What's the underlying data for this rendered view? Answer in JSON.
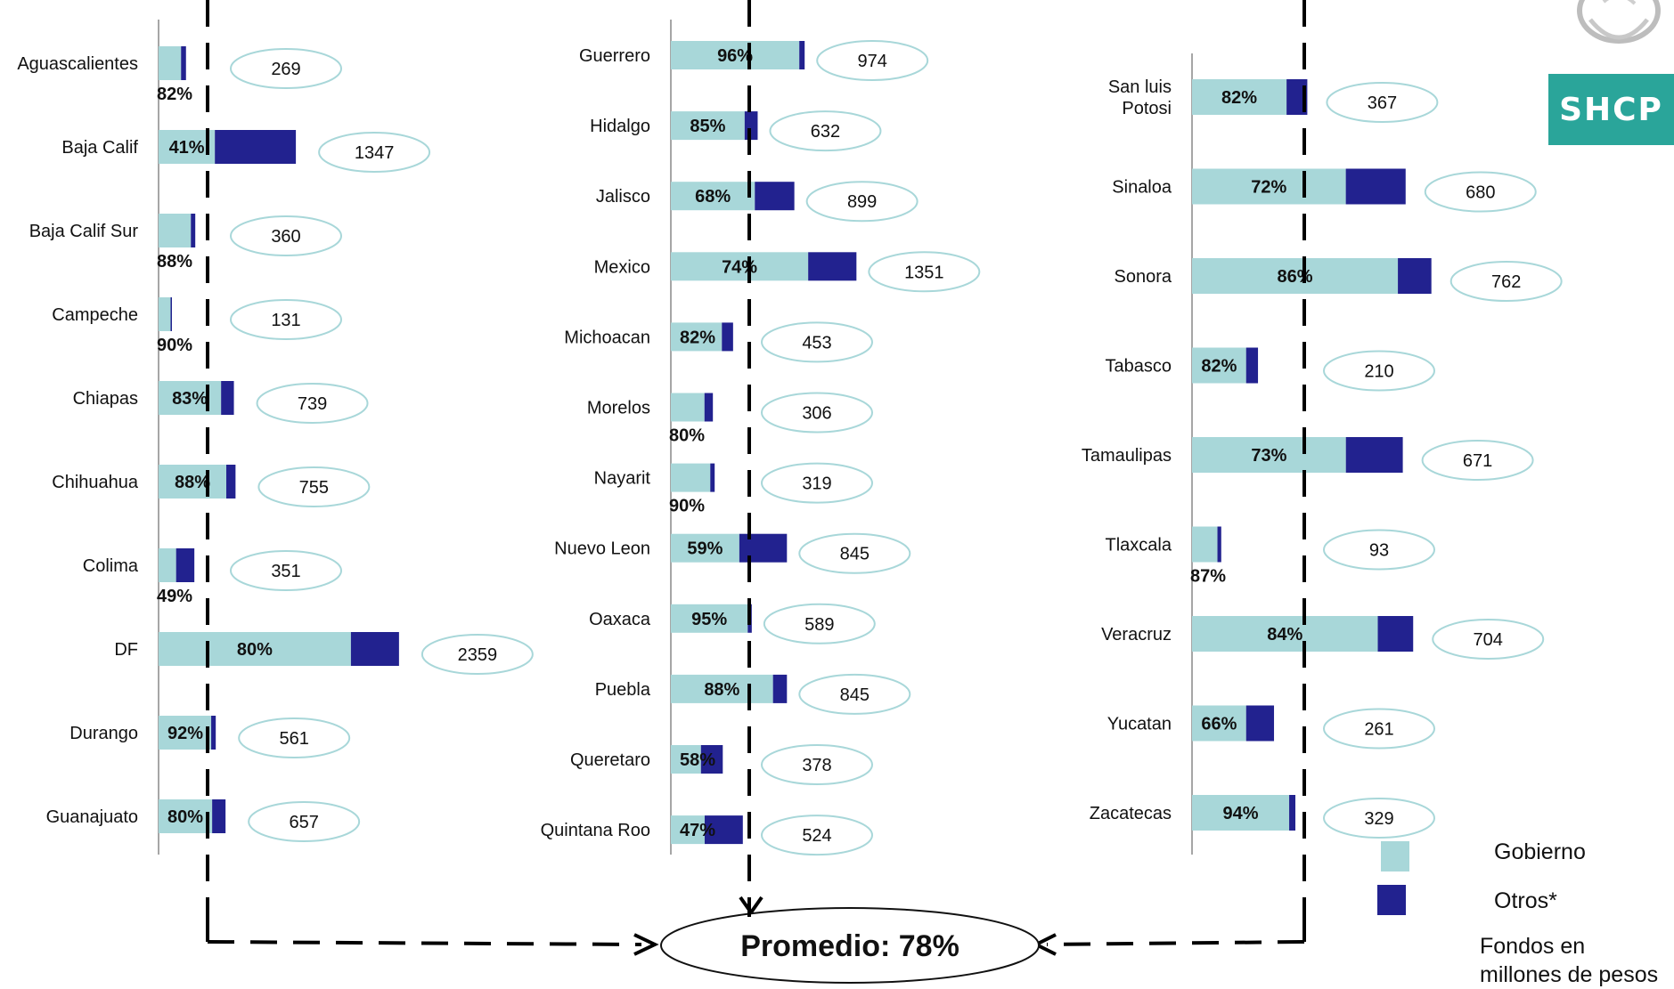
{
  "chart_data": {
    "type": "bar",
    "stacked": true,
    "orientation": "horizontal",
    "series": [
      {
        "name": "Gobierno",
        "color": "#a8d7d9"
      },
      {
        "name": "Otros*",
        "color": "#22228f"
      }
    ],
    "columns": [
      {
        "states": [
          {
            "name": "Aguascalientes",
            "total": 269,
            "pct": "82%"
          },
          {
            "name": "Baja Calif",
            "total": 1347,
            "pct": "41%"
          },
          {
            "name": "Baja Calif Sur",
            "total": 360,
            "pct": "88%"
          },
          {
            "name": "Campeche",
            "total": 131,
            "pct": "90%"
          },
          {
            "name": "Chiapas",
            "total": 739,
            "pct": "83%"
          },
          {
            "name": "Chihuahua",
            "total": 755,
            "pct": "88%"
          },
          {
            "name": "Colima",
            "total": 351,
            "pct": "49%"
          },
          {
            "name": "DF",
            "total": 2359,
            "pct": "80%"
          },
          {
            "name": "Durango",
            "total": 561,
            "pct": "92%"
          },
          {
            "name": "Guanajuato",
            "total": 657,
            "pct": "80%"
          }
        ]
      },
      {
        "states": [
          {
            "name": "Guerrero",
            "total": 974,
            "pct": "96%"
          },
          {
            "name": "Hidalgo",
            "total": 632,
            "pct": "85%"
          },
          {
            "name": "Jalisco",
            "total": 899,
            "pct": "68%"
          },
          {
            "name": "Mexico",
            "total": 1351,
            "pct": "74%"
          },
          {
            "name": "Michoacan",
            "total": 453,
            "pct": "82%"
          },
          {
            "name": "Morelos",
            "total": 306,
            "pct": "80%"
          },
          {
            "name": "Nayarit",
            "total": 319,
            "pct": "90%"
          },
          {
            "name": "Nuevo Leon",
            "total": 845,
            "pct": "59%"
          },
          {
            "name": "Oaxaca",
            "total": 589,
            "pct": "95%"
          },
          {
            "name": "Puebla",
            "total": 845,
            "pct": "88%"
          },
          {
            "name": "Queretaro",
            "total": 378,
            "pct": "58%"
          },
          {
            "name": "Quintana Roo",
            "total": 524,
            "pct": "47%"
          }
        ]
      },
      {
        "states": [
          {
            "name": "San luis\nPotosi",
            "total": 367,
            "pct": "82%"
          },
          {
            "name": "Sinaloa",
            "total": 680,
            "pct": "72%"
          },
          {
            "name": "Sonora",
            "total": 762,
            "pct": "86%"
          },
          {
            "name": "Tabasco",
            "total": 210,
            "pct": "82%"
          },
          {
            "name": "Tamaulipas",
            "total": 671,
            "pct": "73%"
          },
          {
            "name": "Tlaxcala",
            "total": 93,
            "pct": "87%"
          },
          {
            "name": "Veracruz",
            "total": 704,
            "pct": "84%"
          },
          {
            "name": "Yucatan",
            "total": 261,
            "pct": "66%"
          },
          {
            "name": "Zacatecas",
            "total": 329,
            "pct": "94%"
          }
        ]
      }
    ],
    "average_label": "Promedio: 78%",
    "average_pct": 78
  },
  "legend": {
    "gobierno": "Gobierno",
    "otros": "Otros*",
    "note_line1": "Fondos  en",
    "note_line2": "millones de pesos"
  },
  "logo": {
    "text": "SHCP",
    "color": "#2aa59a"
  }
}
